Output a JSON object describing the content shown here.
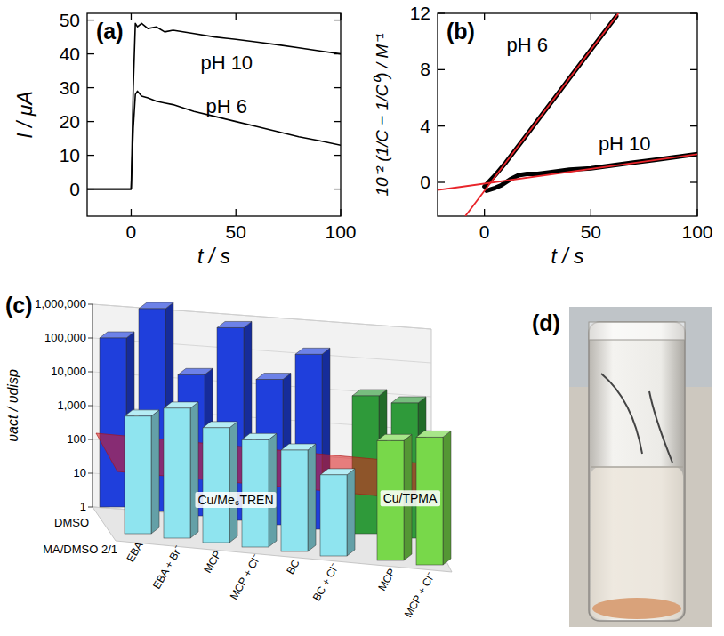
{
  "chart_data": [
    {
      "type": "line",
      "panel": "(a)",
      "x_label": "t / s",
      "y_label": "I / μA",
      "xlim": [
        -21,
        100
      ],
      "xticks": [
        0,
        50,
        100
      ],
      "ylim": [
        -8,
        52
      ],
      "yticks": [
        0,
        10,
        20,
        30,
        40,
        50
      ],
      "series": [
        {
          "name": "pH 10",
          "color": "#000000",
          "x": [
            -21,
            0,
            1,
            2,
            3,
            5,
            8,
            12,
            16,
            20,
            30,
            40,
            50,
            60,
            70,
            80,
            90,
            100
          ],
          "values": [
            0,
            0,
            30,
            49,
            48,
            49,
            47.5,
            48,
            46.5,
            47,
            46,
            45,
            44.3,
            43.5,
            42.7,
            41.8,
            40.9,
            40
          ]
        },
        {
          "name": "pH 6",
          "color": "#000000",
          "x": [
            -21,
            0,
            1,
            2,
            3,
            5,
            8,
            12,
            16,
            20,
            30,
            40,
            50,
            60,
            70,
            80,
            90,
            100
          ],
          "values": [
            0,
            0,
            18,
            28,
            29,
            27.5,
            27,
            26,
            25.5,
            25,
            23,
            21.5,
            20,
            18.5,
            17,
            15.5,
            14.3,
            13
          ]
        }
      ]
    },
    {
      "type": "line",
      "panel": "(b)",
      "x_label": "t / s",
      "y_label": "10⁻² (1/C − 1/C⁰) / M⁻¹",
      "xlim": [
        -22,
        100
      ],
      "xticks": [
        0,
        50,
        100
      ],
      "ylim": [
        -2.4,
        12
      ],
      "yticks": [
        0,
        4,
        8,
        12
      ],
      "series": [
        {
          "name": "pH 6",
          "color": "#000000",
          "x": [
            0,
            5,
            10,
            15,
            20,
            25,
            30,
            35,
            40,
            45,
            50,
            55,
            60,
            62
          ],
          "values": [
            -0.3,
            0.5,
            1.4,
            2.4,
            3.4,
            4.4,
            5.4,
            6.4,
            7.4,
            8.4,
            9.4,
            10.4,
            11.4,
            11.8
          ],
          "fit": {
            "color": "#e8242a",
            "x": [
              -9,
              63
            ],
            "values": [
              -2.4,
              12
            ]
          }
        },
        {
          "name": "pH 10",
          "color": "#000000",
          "x": [
            1,
            3,
            5,
            8,
            12,
            16,
            20,
            25,
            30,
            40,
            50,
            60,
            70,
            80,
            90,
            100
          ],
          "values": [
            -0.6,
            -0.5,
            -0.4,
            -0.2,
            0.2,
            0.5,
            0.6,
            0.6,
            0.7,
            0.9,
            1.0,
            1.2,
            1.4,
            1.6,
            1.8,
            2.0
          ],
          "fit": {
            "color": "#e8242a",
            "x": [
              -22,
              100
            ],
            "values": [
              -0.55,
              2.0
            ]
          }
        }
      ]
    },
    {
      "type": "bar",
      "panel": "(c)",
      "y_label": "υact / υdisp",
      "log": "y",
      "ylim": [
        1,
        1000000
      ],
      "yticks": [
        1,
        10,
        100,
        {
          "value": 1000,
          "label": "1,000"
        },
        {
          "value": 10000,
          "label": "10,000"
        },
        {
          "value": 100000,
          "label": "100,000"
        },
        {
          "value": 1000000,
          "label": "1,000,000"
        }
      ],
      "categories": [
        "EBA",
        "EBA + Br⁻",
        "MCP",
        "MCP + Cl⁻",
        "BC",
        "BC + Cl⁻",
        "MCP",
        "MCP + Cl⁻"
      ],
      "groups": [
        "Cu/Me₆TREN",
        "Cu/Me₆TREN",
        "Cu/Me₆TREN",
        "Cu/Me₆TREN",
        "Cu/Me₆TREN",
        "Cu/Me₆TREN",
        "Cu/TPMA",
        "Cu/TPMA"
      ],
      "threshold": 100,
      "series": [
        {
          "name": "DMSO",
          "colors": [
            "#1f3fdc",
            "#1f3fdc",
            "#1f3fdc",
            "#1f3fdc",
            "#1f3fdc",
            "#1f3fdc",
            "#2f9a3a",
            "#2f9a3a"
          ],
          "values": [
            100000,
            1000000,
            15000,
            500000,
            20000,
            150000,
            12000,
            10000
          ]
        },
        {
          "name": "MA/DMSO 2/1",
          "colors": [
            "#8fe4ef",
            "#8fe4ef",
            "#8fe4ef",
            "#8fe4ef",
            "#8fe4ef",
            "#8fe4ef",
            "#78d84a",
            "#78d84a"
          ],
          "values": [
            3000,
            7000,
            2500,
            1500,
            1000,
            250,
            3500,
            6000
          ]
        }
      ]
    }
  ],
  "photo": {
    "panel": "(d)"
  }
}
